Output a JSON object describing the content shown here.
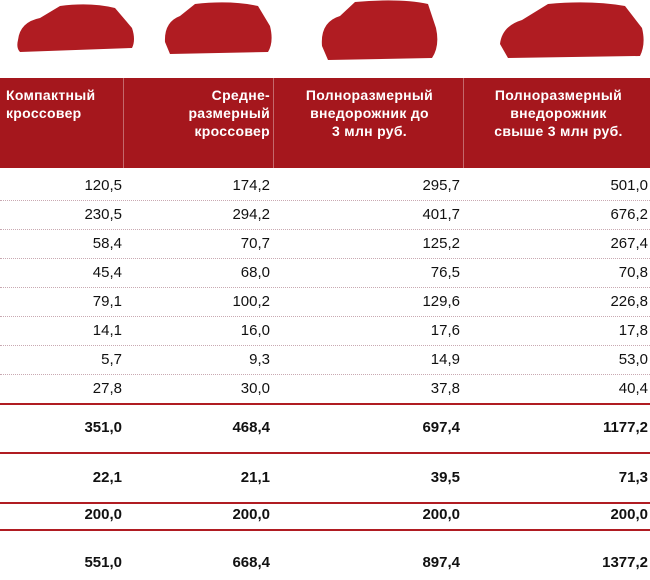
{
  "table": {
    "headers": [
      [
        "Компактный",
        "кроссовер"
      ],
      [
        "Средне-",
        "размерный",
        "кроссовер"
      ],
      [
        "Полноразмерный",
        "внедорожник до",
        "3 млн руб."
      ],
      [
        "Полноразмерный",
        "внедорожник",
        "свыше 3 млн руб."
      ]
    ],
    "rows": [
      [
        "120,5",
        "174,2",
        "295,7",
        "501,0"
      ],
      [
        "230,5",
        "294,2",
        "401,7",
        "676,2"
      ],
      [
        "58,4",
        "70,7",
        "125,2",
        "267,4"
      ],
      [
        "45,4",
        "68,0",
        "76,5",
        "70,8"
      ],
      [
        "79,1",
        "100,2",
        "129,6",
        "226,8"
      ],
      [
        "14,1",
        "16,0",
        "17,6",
        "17,8"
      ],
      [
        "5,7",
        "9,3",
        "14,9",
        "53,0"
      ],
      [
        "27,8",
        "30,0",
        "37,8",
        "40,4"
      ]
    ],
    "summary_rows": [
      [
        "351,0",
        "468,4",
        "697,4",
        "1177,2"
      ],
      [
        "22,1",
        "21,1",
        "39,5",
        "71,3"
      ],
      [
        "200,0",
        "200,0",
        "200,0",
        "200,0"
      ],
      [
        "551,0",
        "668,4",
        "897,4",
        "1377,2"
      ]
    ]
  }
}
